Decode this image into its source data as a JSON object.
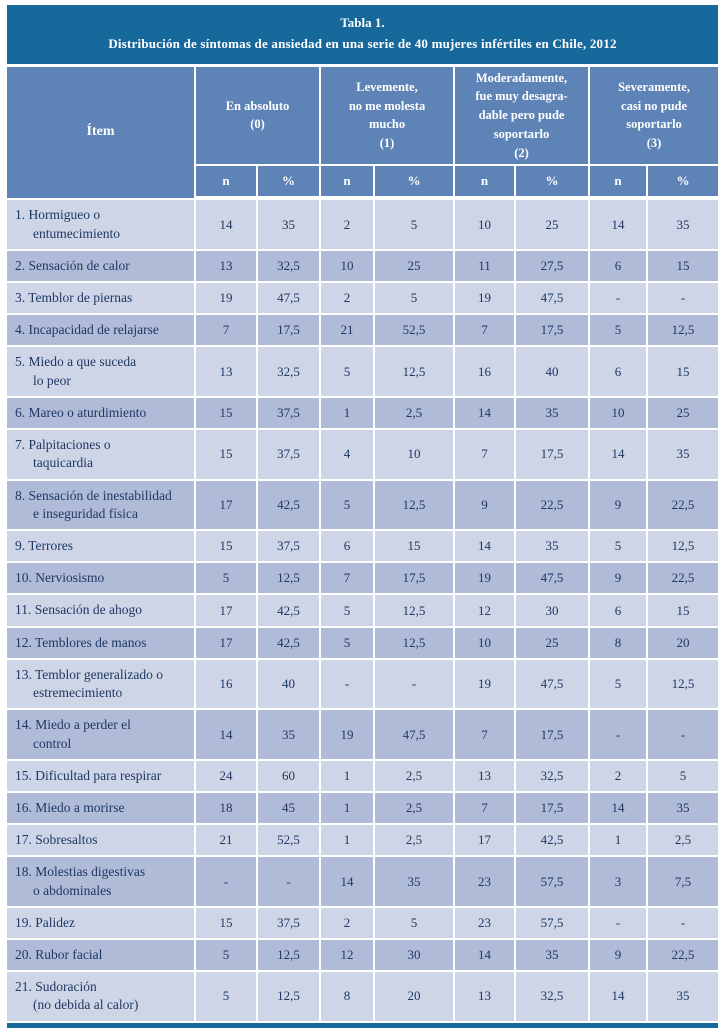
{
  "colors": {
    "title_bar": "#17689B",
    "header_blue": "#5E83B6",
    "row_light": "#CDD5E6",
    "row_dark": "#AFBBD7",
    "body_text": "#1F3864",
    "divider": "#FFFFFF"
  },
  "title": {
    "line1": "Tabla 1.",
    "line2": "Distribución de síntomas de ansiedad en una serie de 40 mujeres infértiles en Chile, 2012"
  },
  "table": {
    "item_header": "Ítem",
    "groups": [
      {
        "lines": [
          "En absoluto",
          "(0)"
        ]
      },
      {
        "lines": [
          "Levemente,",
          "no me molesta",
          "mucho",
          "(1)"
        ]
      },
      {
        "lines": [
          "Moderadamente,",
          "fue muy desagra-",
          "dable pero pude",
          "soportarlo",
          "(2)"
        ]
      },
      {
        "lines": [
          "Severamente,",
          "casi no pude",
          "soportarlo",
          "(3)"
        ]
      }
    ],
    "subheaders": [
      "n",
      "%"
    ],
    "rows": [
      {
        "item": [
          "1. Hormigueo o",
          "entumecimiento"
        ],
        "values": [
          "14",
          "35",
          "2",
          "5",
          "10",
          "25",
          "14",
          "35"
        ]
      },
      {
        "item": [
          "2. Sensación de calor"
        ],
        "values": [
          "13",
          "32,5",
          "10",
          "25",
          "11",
          "27,5",
          "6",
          "15"
        ]
      },
      {
        "item": [
          "3. Temblor de piernas"
        ],
        "values": [
          "19",
          "47,5",
          "2",
          "5",
          "19",
          "47,5",
          "-",
          "-"
        ]
      },
      {
        "item": [
          "4. Incapacidad de relajarse"
        ],
        "values": [
          "7",
          "17,5",
          "21",
          "52,5",
          "7",
          "17,5",
          "5",
          "12,5"
        ]
      },
      {
        "item": [
          "5. Miedo a que suceda",
          "lo peor"
        ],
        "values": [
          "13",
          "32,5",
          "5",
          "12,5",
          "16",
          "40",
          "6",
          "15"
        ]
      },
      {
        "item": [
          "6. Mareo o aturdimiento"
        ],
        "values": [
          "15",
          "37,5",
          "1",
          "2,5",
          "14",
          "35",
          "10",
          "25"
        ]
      },
      {
        "item": [
          "7. Palpitaciones o",
          "taquicardia"
        ],
        "values": [
          "15",
          "37,5",
          "4",
          "10",
          "7",
          "17,5",
          "14",
          "35"
        ]
      },
      {
        "item": [
          "8. Sensación de inestabilidad",
          "e inseguridad física"
        ],
        "values": [
          "17",
          "42,5",
          "5",
          "12,5",
          "9",
          "22,5",
          "9",
          "22,5"
        ]
      },
      {
        "item": [
          "9. Terrores"
        ],
        "values": [
          "15",
          "37,5",
          "6",
          "15",
          "14",
          "35",
          "5",
          "12,5"
        ]
      },
      {
        "item": [
          "10. Nerviosismo"
        ],
        "values": [
          "5",
          "12,5",
          "7",
          "17,5",
          "19",
          "47,5",
          "9",
          "22,5"
        ]
      },
      {
        "item": [
          "11. Sensación de ahogo"
        ],
        "values": [
          "17",
          "42,5",
          "5",
          "12,5",
          "12",
          "30",
          "6",
          "15"
        ]
      },
      {
        "item": [
          "12. Temblores de manos"
        ],
        "values": [
          "17",
          "42,5",
          "5",
          "12,5",
          "10",
          "25",
          "8",
          "20"
        ]
      },
      {
        "item": [
          "13. Temblor generalizado o",
          "estremecimiento"
        ],
        "values": [
          "16",
          "40",
          "-",
          "-",
          "19",
          "47,5",
          "5",
          "12,5"
        ]
      },
      {
        "item": [
          "14. Miedo a perder el",
          "control"
        ],
        "values": [
          "14",
          "35",
          "19",
          "47,5",
          "7",
          "17,5",
          "-",
          "-"
        ]
      },
      {
        "item": [
          "15. Dificultad para respirar"
        ],
        "values": [
          "24",
          "60",
          "1",
          "2,5",
          "13",
          "32,5",
          "2",
          "5"
        ]
      },
      {
        "item": [
          "16. Miedo a morirse"
        ],
        "values": [
          "18",
          "45",
          "1",
          "2,5",
          "7",
          "17,5",
          "14",
          "35"
        ]
      },
      {
        "item": [
          "17. Sobresaltos"
        ],
        "values": [
          "21",
          "52,5",
          "1",
          "2,5",
          "17",
          "42,5",
          "1",
          "2,5"
        ]
      },
      {
        "item": [
          "18. Molestias digestivas",
          "o abdominales"
        ],
        "values": [
          "-",
          "-",
          "14",
          "35",
          "23",
          "57,5",
          "3",
          "7,5"
        ]
      },
      {
        "item": [
          "19. Palidez"
        ],
        "values": [
          "15",
          "37,5",
          "2",
          "5",
          "23",
          "57,5",
          "-",
          "-"
        ]
      },
      {
        "item": [
          "20. Rubor facial"
        ],
        "values": [
          "5",
          "12,5",
          "12",
          "30",
          "14",
          "35",
          "9",
          "22,5"
        ]
      },
      {
        "item": [
          "21. Sudoración",
          "(no debida al calor)"
        ],
        "values": [
          "5",
          "12,5",
          "8",
          "20",
          "13",
          "32,5",
          "14",
          "35"
        ]
      }
    ]
  }
}
